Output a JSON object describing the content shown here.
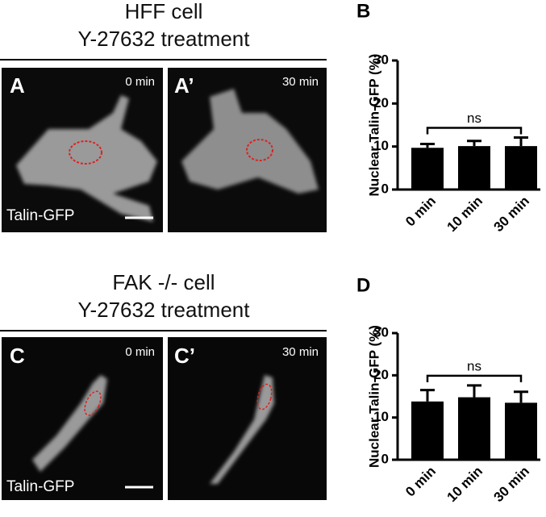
{
  "image_panels": [
    {
      "title": "HFF cell",
      "subtitle": "Y-27632 treatment",
      "images": [
        {
          "label": "A",
          "time": "0 min",
          "marker": "Talin-GFP"
        },
        {
          "label": "A’",
          "time": "30 min"
        }
      ]
    },
    {
      "title": "FAK -/-  cell",
      "subtitle": "Y-27632 treatment",
      "images": [
        {
          "label": "C",
          "time": "0 min",
          "marker": "Talin-GFP"
        },
        {
          "label": "C’",
          "time": "30 min"
        }
      ]
    }
  ],
  "chart_data": [
    {
      "type": "bar",
      "panel": "B",
      "ylabel": "Nuclear Talin-GFP (%)",
      "categories": [
        "0 min",
        "10 min",
        "30 min"
      ],
      "values": [
        9.7,
        10.1,
        10.1
      ],
      "errors": [
        0.9,
        1.2,
        2.0
      ],
      "color": "#000000",
      "ylim": [
        0,
        30
      ],
      "yticks": [
        0,
        10,
        20,
        30
      ],
      "annotation": "ns"
    },
    {
      "type": "bar",
      "panel": "D",
      "ylabel": "Nuclear Talin-GFP (%)",
      "categories": [
        "0 min",
        "10 min",
        "30 min"
      ],
      "values": [
        13.8,
        14.8,
        13.5
      ],
      "errors": [
        2.7,
        2.8,
        2.6
      ],
      "color": "#000000",
      "ylim": [
        0,
        30
      ],
      "yticks": [
        0,
        10,
        20,
        30
      ],
      "annotation": "ns"
    }
  ]
}
